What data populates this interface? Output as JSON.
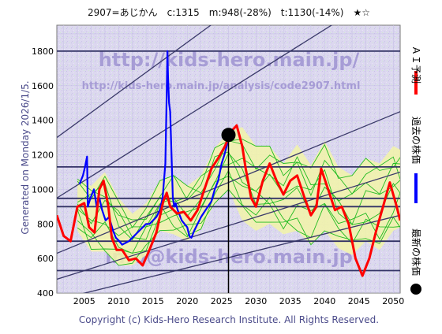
{
  "header": "2907=あじかん　c:1315　m:948(-28%)　t:1130(-14%)　★☆",
  "side_label": "Generated on Monday 2026/1/5.",
  "footer": "Copyright (c) Kids-Hero Research Institute. All Rights Reserved.",
  "watermarks": {
    "url": "http://kids-hero.main.jp/",
    "analysis_url": "http://kids-hero.main.jp/analysis/code2907.html",
    "email": "info@kids-hero.main.jp"
  },
  "legend": [
    {
      "label": "ＡＩ予測",
      "color": "#ff0000",
      "marker": "line"
    },
    {
      "label": "過去の株価",
      "color": "#0000ff",
      "marker": "line"
    },
    {
      "label": "最新の株価",
      "color": "#000000",
      "marker": "dot"
    }
  ],
  "colors": {
    "background": "#d9d5ee",
    "band_fill": "#f2f5a8",
    "simulation": "#22bb22",
    "channel_lines": "#3a3a6a",
    "horizontal_lines": "#333366",
    "watermark_text": "#9b8fd0",
    "text": "#4a4a8a"
  },
  "chart_data": {
    "type": "line",
    "title": "2907=あじかん　c:1315　m:948(-28%)　t:1130(-14%)　★☆",
    "xlim": [
      2001,
      2051
    ],
    "ylim": [
      400,
      1950
    ],
    "x_ticks": [
      2005,
      2010,
      2015,
      2020,
      2025,
      2030,
      2035,
      2040,
      2045,
      2050
    ],
    "y_ticks": [
      400,
      600,
      800,
      1000,
      1200,
      1400,
      1600,
      1800
    ],
    "grid": true,
    "legend_placement": "right",
    "latest": {
      "x": 2026.0,
      "y": 1315
    },
    "horizontal_levels": [
      1800,
      1130,
      948,
      900,
      700,
      530
    ],
    "channel_lines": [
      {
        "x": [
          2001,
          2051
        ],
        "y": [
          1300,
          2750
        ]
      },
      {
        "x": [
          2001,
          2051
        ],
        "y": [
          950,
          2200
        ]
      },
      {
        "x": [
          2001,
          2051
        ],
        "y": [
          630,
          1450
        ]
      },
      {
        "x": [
          2001,
          2051
        ],
        "y": [
          480,
          1100
        ]
      },
      {
        "x": [
          2001,
          2051
        ],
        "y": [
          360,
          850
        ]
      }
    ],
    "series": [
      {
        "name": "過去の株価",
        "color": "#0000ff",
        "x": [
          2004.3,
          2004.8,
          2005.1,
          2005.4,
          2005.5,
          2005.9,
          2006.4,
          2006.8,
          2007.2,
          2007.6,
          2008.1,
          2008.6,
          2009.2,
          2009.6,
          2010.1,
          2010.5,
          2011.0,
          2011.5,
          2012.0,
          2012.5,
          2013.0,
          2013.5,
          2014.0,
          2014.5,
          2015.0,
          2015.5,
          2016.0,
          2016.4,
          2016.8,
          2017.0,
          2017.1,
          2017.2,
          2017.35,
          2017.5,
          2017.7,
          2017.9,
          2018.1,
          2018.3,
          2018.6,
          2018.9,
          2019.2,
          2019.6,
          2020.0,
          2020.3,
          2020.6,
          2021.0,
          2021.5,
          2022.0,
          2022.5,
          2023.0,
          2023.5,
          2024.0,
          2024.5,
          2025.0,
          2025.4,
          2025.8,
          2026.0
        ],
        "y": [
          1030,
          1080,
          1130,
          1190,
          900,
          950,
          1000,
          900,
          950,
          880,
          820,
          840,
          760,
          720,
          700,
          680,
          690,
          700,
          720,
          740,
          760,
          780,
          800,
          800,
          820,
          840,
          880,
          950,
          1150,
          1550,
          1800,
          1650,
          1500,
          1450,
          1200,
          950,
          900,
          920,
          880,
          850,
          820,
          800,
          780,
          730,
          720,
          760,
          800,
          840,
          870,
          900,
          930,
          1000,
          1050,
          1150,
          1200,
          1260,
          1315
        ]
      },
      {
        "name": "ＡＩ予測",
        "color": "#ff0000",
        "x": [
          2001,
          2002,
          2003,
          2004,
          2005,
          2005.7,
          2006.5,
          2007.2,
          2007.8,
          2008.5,
          2009.0,
          2009.7,
          2010.5,
          2011.5,
          2012.5,
          2013.5,
          2014.5,
          2015.5,
          2016.5,
          2017.0,
          2017.5,
          2018.5,
          2019.5,
          2020.5,
          2021.5,
          2022.5,
          2023.5,
          2024.5,
          2025.5,
          2026.0,
          2026.5,
          2027.2,
          2028.0,
          2028.5,
          2029.3,
          2030.0,
          2031.0,
          2032.0,
          2033.0,
          2034.0,
          2035.0,
          2036.0,
          2037.0,
          2038.0,
          2038.8,
          2039.5,
          2040.5,
          2041.5,
          2042.5,
          2043.5,
          2044.5,
          2045.5,
          2046.5,
          2047.5,
          2048.5,
          2049.5,
          2050.5,
          2051
        ],
        "y": [
          850,
          730,
          700,
          900,
          920,
          780,
          750,
          1000,
          1050,
          900,
          720,
          650,
          650,
          590,
          600,
          560,
          650,
          750,
          930,
          980,
          900,
          860,
          870,
          820,
          880,
          1000,
          1120,
          1180,
          1250,
          1300,
          1340,
          1370,
          1250,
          1120,
          950,
          900,
          1050,
          1150,
          1050,
          970,
          1050,
          1080,
          960,
          850,
          900,
          1120,
          1000,
          880,
          900,
          800,
          600,
          500,
          600,
          760,
          900,
          1040,
          900,
          820
        ]
      }
    ],
    "simulation_band": {
      "name": "simulation",
      "x": [
        2004,
        2006,
        2008,
        2010,
        2012,
        2014,
        2016,
        2018,
        2020,
        2022,
        2024,
        2026,
        2028,
        2030,
        2032,
        2034,
        2036,
        2038,
        2040,
        2042,
        2044,
        2046,
        2048,
        2050,
        2051
      ],
      "upper": [
        1060,
        1020,
        1100,
        950,
        860,
        920,
        1050,
        1080,
        1020,
        1080,
        1240,
        1330,
        1360,
        1250,
        1250,
        1150,
        1260,
        1140,
        1280,
        1130,
        1080,
        1180,
        1150,
        1250,
        1230
      ],
      "lower": [
        760,
        640,
        640,
        560,
        560,
        620,
        760,
        740,
        700,
        770,
        920,
        1000,
        820,
        760,
        800,
        740,
        760,
        680,
        760,
        660,
        620,
        700,
        650,
        760,
        780
      ]
    }
  }
}
